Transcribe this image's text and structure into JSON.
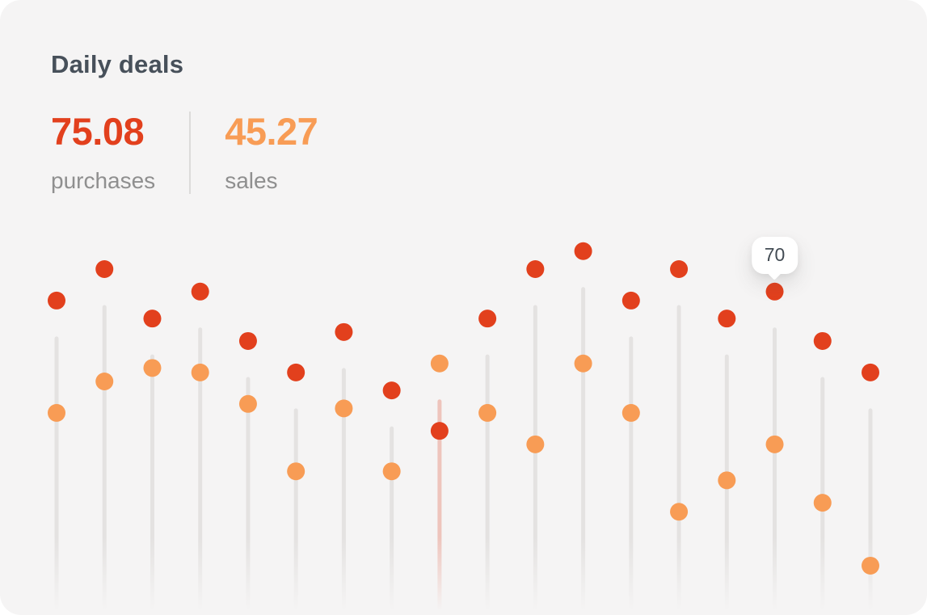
{
  "card": {
    "title": "Daily deals",
    "stats": {
      "purchases": {
        "value": "75.08",
        "label": "purchases"
      },
      "sales": {
        "value": "45.27",
        "label": "sales"
      }
    }
  },
  "colors": {
    "card_bg": "#f5f4f4",
    "title": "#47505a",
    "label": "#8f8f8f",
    "divider": "#dcdbda",
    "purchases": "#e2401d",
    "sales": "#f89c55",
    "stick": "#e4e2e1",
    "stick_highlight": "#eec4bc",
    "tooltip_text": "#434c54"
  },
  "chart_data": {
    "type": "scatter",
    "subtype": "lollipop",
    "title": "Daily deals",
    "xlabel": "",
    "ylabel": "",
    "x": [
      1,
      2,
      3,
      4,
      5,
      6,
      7,
      8,
      9,
      10,
      11,
      12,
      13,
      14,
      15,
      16,
      17,
      18
    ],
    "series": [
      {
        "name": "purchases",
        "color_key": "purchases",
        "values": [
          68,
          75,
          64,
          70,
          59,
          52,
          61,
          48,
          39,
          64,
          75,
          79,
          68,
          75,
          64,
          70,
          59,
          52
        ]
      },
      {
        "name": "sales",
        "color_key": "sales",
        "values": [
          43,
          50,
          53,
          52,
          45,
          30,
          44,
          30,
          54,
          43,
          36,
          54,
          43,
          21,
          28,
          36,
          23,
          9
        ]
      }
    ],
    "ylim": [
      0,
      100
    ],
    "grid": false,
    "legend": "none",
    "tooltip": {
      "point_index": 15,
      "series": "purchases",
      "label": "70"
    },
    "highlight_index": 8
  }
}
